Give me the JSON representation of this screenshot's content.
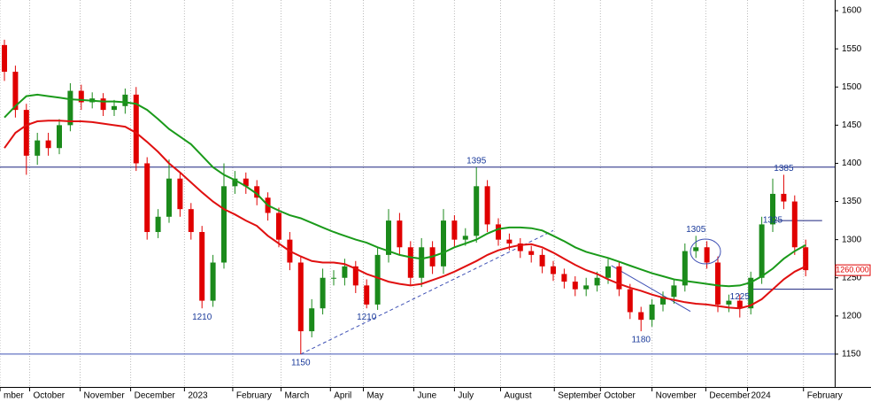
{
  "chart_data": {
    "type": "candlestick",
    "ylim": [
      1107,
      1614
    ],
    "yticks": [
      1150,
      1200,
      1250,
      1300,
      1350,
      1400,
      1450,
      1500,
      1550,
      1600
    ],
    "up_color": "#1b8a1b",
    "down_color": "#e00000",
    "candles": {
      "open": [
        1555,
        1520,
        1470,
        1410,
        1430,
        1420,
        1450,
        1495,
        1480,
        1485,
        1470,
        1475,
        1490,
        1400,
        1310,
        1330,
        1380,
        1340,
        1310,
        1220,
        1270,
        1370,
        1380,
        1370,
        1355,
        1335,
        1300,
        1270,
        1180,
        1210,
        1250,
        1250,
        1265,
        1240,
        1215,
        1280,
        1325,
        1290,
        1250,
        1290,
        1265,
        1325,
        1300,
        1305,
        1370,
        1320,
        1300,
        1295,
        1285,
        1280,
        1265,
        1255,
        1245,
        1235,
        1240,
        1250,
        1265,
        1235,
        1205,
        1195,
        1215,
        1225,
        1240,
        1285,
        1290,
        1270,
        1215,
        1220,
        1210,
        1250,
        1320,
        1360,
        1350,
        1290
      ],
      "high": [
        1562,
        1528,
        1478,
        1440,
        1440,
        1458,
        1505,
        1503,
        1493,
        1492,
        1483,
        1498,
        1500,
        1408,
        1340,
        1405,
        1388,
        1348,
        1318,
        1280,
        1400,
        1390,
        1388,
        1378,
        1362,
        1342,
        1310,
        1278,
        1222,
        1262,
        1260,
        1275,
        1272,
        1248,
        1290,
        1340,
        1335,
        1298,
        1302,
        1298,
        1340,
        1332,
        1315,
        1395,
        1378,
        1328,
        1308,
        1302,
        1292,
        1288,
        1272,
        1262,
        1252,
        1250,
        1258,
        1275,
        1272,
        1242,
        1212,
        1222,
        1232,
        1248,
        1295,
        1305,
        1298,
        1278,
        1228,
        1228,
        1258,
        1330,
        1380,
        1385,
        1358,
        1300
      ],
      "low": [
        1508,
        1460,
        1385,
        1398,
        1410,
        1412,
        1442,
        1470,
        1472,
        1462,
        1462,
        1465,
        1390,
        1300,
        1302,
        1322,
        1330,
        1300,
        1210,
        1212,
        1262,
        1360,
        1360,
        1345,
        1325,
        1290,
        1260,
        1150,
        1172,
        1202,
        1240,
        1240,
        1230,
        1210,
        1208,
        1270,
        1280,
        1240,
        1238,
        1255,
        1255,
        1290,
        1292,
        1296,
        1310,
        1292,
        1286,
        1276,
        1270,
        1256,
        1246,
        1236,
        1226,
        1226,
        1232,
        1242,
        1226,
        1196,
        1180,
        1186,
        1206,
        1216,
        1232,
        1276,
        1262,
        1205,
        1205,
        1198,
        1202,
        1242,
        1310,
        1340,
        1280,
        1252
      ],
      "close": [
        1520,
        1470,
        1410,
        1430,
        1420,
        1450,
        1495,
        1480,
        1485,
        1470,
        1475,
        1490,
        1400,
        1310,
        1330,
        1380,
        1340,
        1310,
        1220,
        1270,
        1370,
        1380,
        1370,
        1355,
        1335,
        1300,
        1270,
        1180,
        1210,
        1250,
        1250,
        1265,
        1240,
        1215,
        1280,
        1325,
        1290,
        1250,
        1290,
        1265,
        1325,
        1300,
        1305,
        1370,
        1320,
        1300,
        1295,
        1285,
        1280,
        1265,
        1255,
        1245,
        1235,
        1240,
        1250,
        1265,
        1235,
        1205,
        1195,
        1215,
        1225,
        1240,
        1285,
        1290,
        1270,
        1215,
        1220,
        1210,
        1250,
        1320,
        1360,
        1350,
        1290,
        1260
      ]
    },
    "series": [
      {
        "color": "#1a9a1a",
        "values": [
          1460,
          1475,
          1488,
          1490,
          1488,
          1486,
          1484,
          1483,
          1482,
          1481,
          1481,
          1480,
          1478,
          1470,
          1458,
          1445,
          1435,
          1425,
          1410,
          1395,
          1385,
          1378,
          1370,
          1360,
          1345,
          1338,
          1332,
          1328,
          1322,
          1316,
          1310,
          1305,
          1300,
          1296,
          1290,
          1285,
          1280,
          1277,
          1275,
          1278,
          1283,
          1290,
          1295,
          1300,
          1308,
          1314,
          1316,
          1316,
          1315,
          1312,
          1305,
          1298,
          1290,
          1284,
          1280,
          1276,
          1271,
          1266,
          1261,
          1256,
          1252,
          1248,
          1246,
          1244,
          1242,
          1240,
          1239,
          1240,
          1244,
          1252,
          1262,
          1275,
          1285,
          1293
        ]
      },
      {
        "color": "#e01010",
        "values": [
          1420,
          1440,
          1450,
          1455,
          1456,
          1456,
          1455,
          1455,
          1454,
          1452,
          1450,
          1448,
          1440,
          1428,
          1415,
          1400,
          1388,
          1375,
          1362,
          1350,
          1340,
          1333,
          1325,
          1318,
          1305,
          1295,
          1285,
          1278,
          1272,
          1270,
          1270,
          1268,
          1262,
          1255,
          1250,
          1245,
          1242,
          1240,
          1242,
          1247,
          1252,
          1258,
          1265,
          1272,
          1280,
          1286,
          1290,
          1293,
          1294,
          1290,
          1283,
          1275,
          1267,
          1260,
          1255,
          1248,
          1242,
          1237,
          1233,
          1228,
          1224,
          1221,
          1218,
          1216,
          1215,
          1213,
          1211,
          1210,
          1214,
          1222,
          1235,
          1248,
          1258,
          1265
        ]
      }
    ],
    "x_labels": [
      {
        "label": "mber",
        "index": -0.4
      },
      {
        "label": "October",
        "index": 2.3
      },
      {
        "label": "November",
        "index": 6.9
      },
      {
        "label": "December",
        "index": 11.5
      },
      {
        "label": "2023",
        "index": 16.4
      },
      {
        "label": "February",
        "index": 20.8
      },
      {
        "label": "March",
        "index": 25.2
      },
      {
        "label": "April",
        "index": 29.7
      },
      {
        "label": "May",
        "index": 32.7
      },
      {
        "label": "June",
        "index": 37.3
      },
      {
        "label": "July",
        "index": 41
      },
      {
        "label": "August",
        "index": 45.2
      },
      {
        "label": "September",
        "index": 50.1
      },
      {
        "label": "October",
        "index": 54.3
      },
      {
        "label": "November",
        "index": 59
      },
      {
        "label": "December",
        "index": 63.9
      },
      {
        "label": "2024",
        "index": 67.7
      },
      {
        "label": "February",
        "index": 72.8
      }
    ],
    "annotations": [
      {
        "index": 18,
        "value": 1210
      },
      {
        "index": 27,
        "value": 1150
      },
      {
        "index": 33,
        "value": 1210
      },
      {
        "index": 43,
        "value": 1395
      },
      {
        "index": 58,
        "value": 1180
      },
      {
        "index": 63,
        "value": 1305
      },
      {
        "index": 67,
        "value": 1225
      },
      {
        "index": 70,
        "value": 1325
      },
      {
        "index": 71,
        "value": 1385
      }
    ],
    "hlines": [
      {
        "value": 1395,
        "color": "#1a237e"
      },
      {
        "value": 1150,
        "color": "#3f51b5"
      }
    ],
    "segments": [
      {
        "from": [
          27,
          1150
        ],
        "to": [
          50,
          1312
        ],
        "color": "#3f51b5",
        "dashed": true
      },
      {
        "from": [
          55.3,
          1266
        ],
        "to": [
          62.5,
          1206
        ],
        "color": "#3f51b5",
        "dashed": false
      },
      {
        "from": [
          70,
          1325
        ],
        "to": [
          74.5,
          1325
        ],
        "color": "#1a237e",
        "dashed": false
      },
      {
        "from": [
          68,
          1235
        ],
        "to": [
          75.5,
          1235
        ],
        "color": "#1a237e",
        "dashed": false
      }
    ],
    "last_price": {
      "value": 1260,
      "label": "1260.000",
      "color": "#e00000"
    }
  }
}
